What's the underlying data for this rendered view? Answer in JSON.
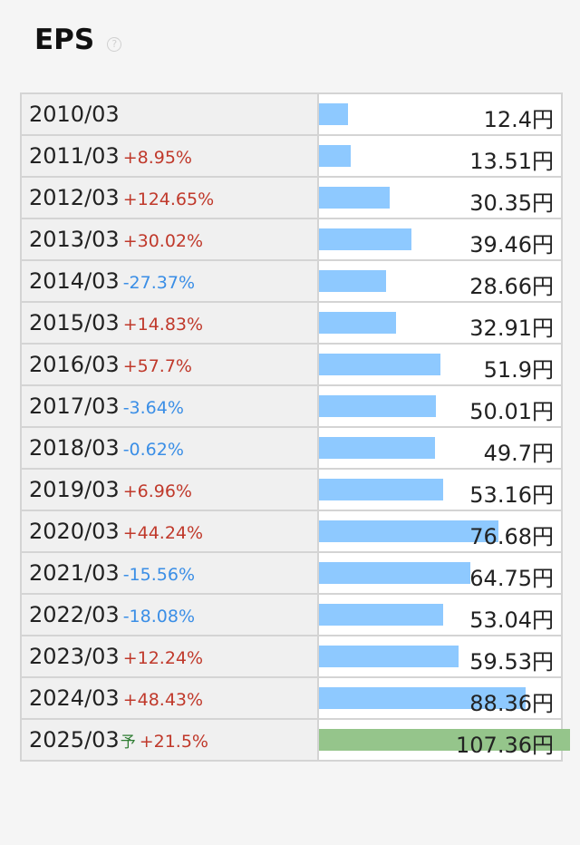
{
  "header": {
    "title": "EPS",
    "help_icon": "?"
  },
  "colors": {
    "bar_actual": "#8ec9ff",
    "bar_forecast": "#95c58b",
    "increase": "#c0392b",
    "decrease": "#3a8ee6"
  },
  "chart_data": {
    "type": "bar",
    "orientation": "horizontal",
    "title": "EPS",
    "unit": "円",
    "forecast_marker": "予",
    "categories": [
      "2010/03",
      "2011/03",
      "2012/03",
      "2013/03",
      "2014/03",
      "2015/03",
      "2016/03",
      "2017/03",
      "2018/03",
      "2019/03",
      "2020/03",
      "2021/03",
      "2022/03",
      "2023/03",
      "2024/03",
      "2025/03"
    ],
    "rows": [
      {
        "period": "2010/03",
        "change": "",
        "direction": "",
        "value": 12.4,
        "value_text": "12.4円",
        "forecast": false
      },
      {
        "period": "2011/03",
        "change": "+8.95%",
        "direction": "up",
        "value": 13.51,
        "value_text": "13.51円",
        "forecast": false
      },
      {
        "period": "2012/03",
        "change": "+124.65%",
        "direction": "up",
        "value": 30.35,
        "value_text": "30.35円",
        "forecast": false
      },
      {
        "period": "2013/03",
        "change": "+30.02%",
        "direction": "up",
        "value": 39.46,
        "value_text": "39.46円",
        "forecast": false
      },
      {
        "period": "2014/03",
        "change": "-27.37%",
        "direction": "down",
        "value": 28.66,
        "value_text": "28.66円",
        "forecast": false
      },
      {
        "period": "2015/03",
        "change": "+14.83%",
        "direction": "up",
        "value": 32.91,
        "value_text": "32.91円",
        "forecast": false
      },
      {
        "period": "2016/03",
        "change": "+57.7%",
        "direction": "up",
        "value": 51.9,
        "value_text": "51.9円",
        "forecast": false
      },
      {
        "period": "2017/03",
        "change": "-3.64%",
        "direction": "down",
        "value": 50.01,
        "value_text": "50.01円",
        "forecast": false
      },
      {
        "period": "2018/03",
        "change": "-0.62%",
        "direction": "down",
        "value": 49.7,
        "value_text": "49.7円",
        "forecast": false
      },
      {
        "period": "2019/03",
        "change": "+6.96%",
        "direction": "up",
        "value": 53.16,
        "value_text": "53.16円",
        "forecast": false
      },
      {
        "period": "2020/03",
        "change": "+44.24%",
        "direction": "up",
        "value": 76.68,
        "value_text": "76.68円",
        "forecast": false
      },
      {
        "period": "2021/03",
        "change": "-15.56%",
        "direction": "down",
        "value": 64.75,
        "value_text": "64.75円",
        "forecast": false
      },
      {
        "period": "2022/03",
        "change": "-18.08%",
        "direction": "down",
        "value": 53.04,
        "value_text": "53.04円",
        "forecast": false
      },
      {
        "period": "2023/03",
        "change": "+12.24%",
        "direction": "up",
        "value": 59.53,
        "value_text": "59.53円",
        "forecast": false
      },
      {
        "period": "2024/03",
        "change": "+48.43%",
        "direction": "up",
        "value": 88.36,
        "value_text": "88.36円",
        "forecast": false
      },
      {
        "period": "2025/03",
        "change": "+21.5%",
        "direction": "up",
        "value": 107.36,
        "value_text": "107.36円",
        "forecast": true
      }
    ],
    "xlim": [
      0,
      107.36
    ]
  }
}
